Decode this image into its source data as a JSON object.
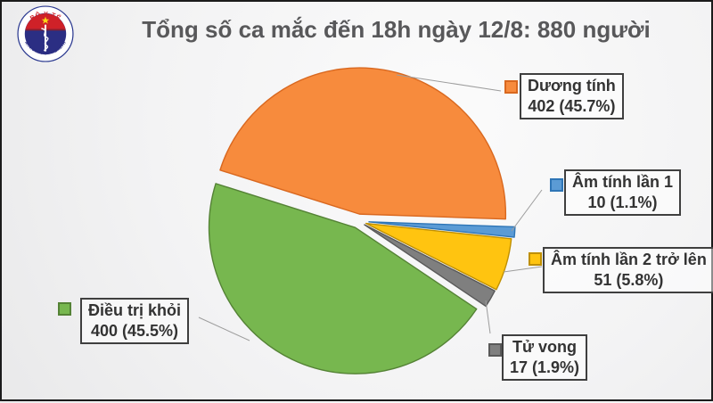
{
  "header": {
    "title": "Tổng số ca mắc đến 18h ngày 12/8: 880 người"
  },
  "logo": {
    "name": "ministry-of-health-vietnam-seal",
    "top_text": "BỘ Y TẾ",
    "bottom_text": "MINISTRY OF HEALTH",
    "colors": {
      "ring": "#2b3990",
      "red": "#cf2128",
      "navy": "#2b2e83",
      "star": "#f9d616"
    }
  },
  "chart_data": {
    "type": "pie",
    "title": "Tổng số ca mắc đến 18h ngày 12/8: 880 người",
    "total": 880,
    "start_angle_deg": 287.5,
    "legend_position": "outside-callouts",
    "slices": [
      {
        "label": "Dương tính",
        "value": 402,
        "pct": "45.7%",
        "color": "#F78B3D",
        "edge": "#D9681F",
        "explode": 8
      },
      {
        "label": "Âm tính lần 1",
        "value": 10,
        "pct": "1.1%",
        "color": "#5B9BD5",
        "edge": "#2E75B6",
        "explode": 12
      },
      {
        "label": "Âm tính lần 2 trở lên",
        "value": 51,
        "pct": "5.8%",
        "color": "#FFC410",
        "edge": "#BF8F00",
        "explode": 9
      },
      {
        "label": "Tử vong",
        "value": 17,
        "pct": "1.9%",
        "color": "#7F7F7F",
        "edge": "#595959",
        "explode": 8
      },
      {
        "label": "Điều trị khỏi",
        "value": 400,
        "pct": "45.5%",
        "color": "#77B74F",
        "edge": "#548235",
        "explode": 8
      }
    ]
  },
  "legend": {
    "items": [
      {
        "line1": "Dương tính",
        "line2": "402 (45.7%)"
      },
      {
        "line1": "Âm tính lần 1",
        "line2": "10 (1.1%)"
      },
      {
        "line1": "Âm tính lần 2 trở lên",
        "line2": "51 (5.8%)"
      },
      {
        "line1": "Tử vong",
        "line2": "17 (1.9%)"
      },
      {
        "line1": "Điều trị khỏi",
        "line2": "400 (45.5%)"
      }
    ]
  }
}
